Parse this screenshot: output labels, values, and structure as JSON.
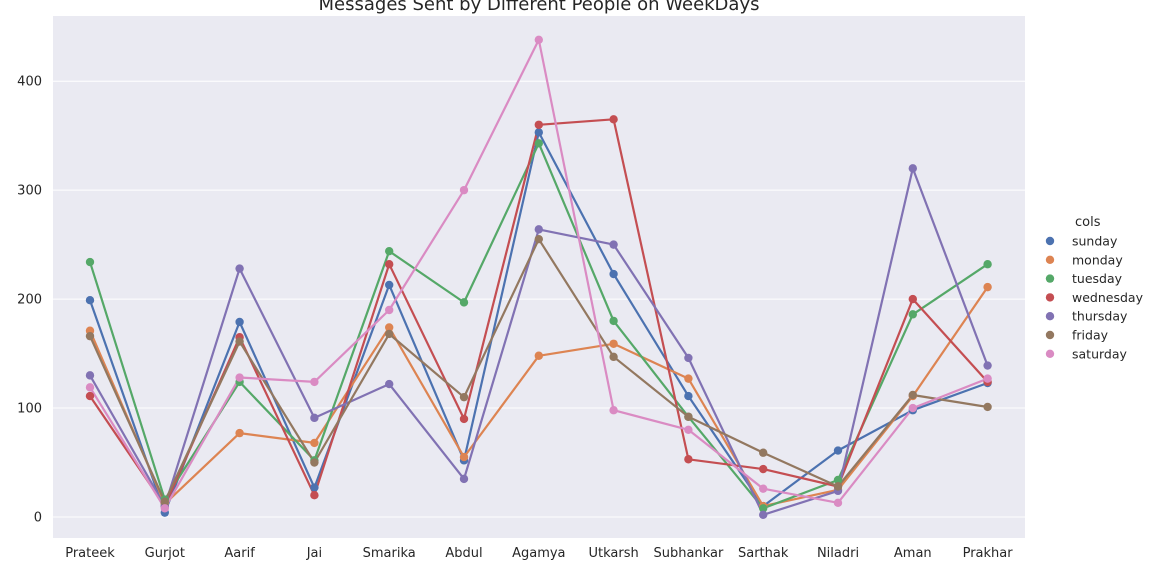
{
  "chart_data": {
    "type": "line",
    "title": "Messages Sent by Different People on WeekDays",
    "xlabel": "",
    "ylabel": "",
    "categories": [
      "Prateek",
      "Gurjot",
      "Aarif",
      "Jai",
      "Smarika",
      "Abdul",
      "Agamya",
      "Utkarsh",
      "Subhankar",
      "Sarthak",
      "Niladri",
      "Aman",
      "Prakhar"
    ],
    "ylim": [
      -20,
      440
    ],
    "yticks": [
      0,
      100,
      200,
      300,
      400
    ],
    "grid": true,
    "legend": {
      "title": "cols",
      "placement": "right"
    },
    "series": [
      {
        "name": "sunday",
        "color": "#4c72b0",
        "values": [
          199,
          4,
          179,
          27,
          213,
          52,
          353,
          223,
          111,
          10,
          61,
          98,
          123
        ]
      },
      {
        "name": "monday",
        "color": "#dd8452",
        "values": [
          171,
          12,
          77,
          68,
          174,
          55,
          148,
          159,
          127,
          10,
          25,
          111,
          211
        ]
      },
      {
        "name": "tuesday",
        "color": "#55a868",
        "values": [
          234,
          16,
          124,
          52,
          244,
          197,
          343,
          180,
          92,
          8,
          34,
          186,
          232
        ]
      },
      {
        "name": "wednesday",
        "color": "#c44e52",
        "values": [
          111,
          10,
          165,
          20,
          232,
          90,
          360,
          365,
          53,
          44,
          28,
          200,
          124
        ]
      },
      {
        "name": "thursday",
        "color": "#8172b3",
        "values": [
          130,
          10,
          228,
          91,
          122,
          35,
          264,
          250,
          146,
          2,
          24,
          320,
          139
        ]
      },
      {
        "name": "friday",
        "color": "#937860",
        "values": [
          166,
          14,
          161,
          50,
          168,
          110,
          255,
          147,
          92,
          59,
          28,
          112,
          101
        ]
      },
      {
        "name": "saturday",
        "color": "#da8bc3",
        "values": [
          119,
          8,
          128,
          124,
          190,
          300,
          438,
          98,
          80,
          26,
          13,
          100,
          127
        ]
      }
    ]
  }
}
